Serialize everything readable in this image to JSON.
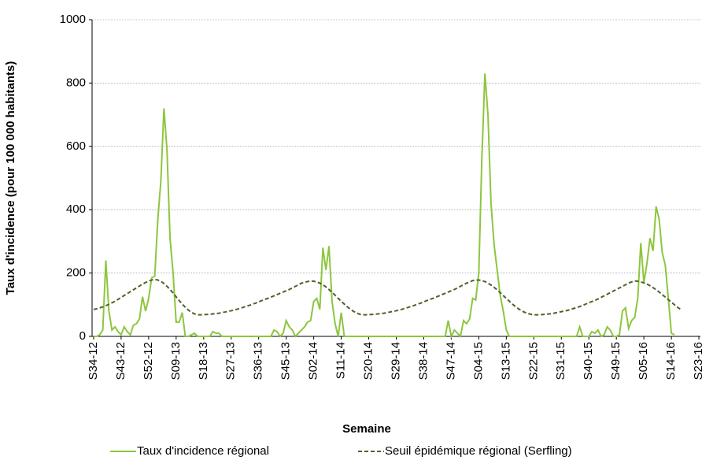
{
  "chart_data": {
    "type": "line",
    "xlabel": "Semaine",
    "ylabel": "Taux d'incidence (pour 100 000 habitants)",
    "categories": [
      "S34-12",
      null,
      null,
      null,
      null,
      null,
      null,
      null,
      null,
      "S43-12",
      null,
      null,
      null,
      null,
      null,
      null,
      null,
      null,
      "S52-12",
      null,
      null,
      null,
      null,
      null,
      null,
      null,
      null,
      "S09-13",
      null,
      null,
      null,
      null,
      null,
      null,
      null,
      null,
      "S18-13",
      null,
      null,
      null,
      null,
      null,
      null,
      null,
      null,
      "S27-13",
      null,
      null,
      null,
      null,
      null,
      null,
      null,
      null,
      "S36-13",
      null,
      null,
      null,
      null,
      null,
      null,
      null,
      null,
      "S45-13",
      null,
      null,
      null,
      null,
      null,
      null,
      null,
      null,
      "S02-14",
      null,
      null,
      null,
      null,
      null,
      null,
      null,
      null,
      "S11-14",
      null,
      null,
      null,
      null,
      null,
      null,
      null,
      null,
      "S20-14",
      null,
      null,
      null,
      null,
      null,
      null,
      null,
      null,
      "S29-14",
      null,
      null,
      null,
      null,
      null,
      null,
      null,
      null,
      "S38-14",
      null,
      null,
      null,
      null,
      null,
      null,
      null,
      null,
      "S47-14",
      null,
      null,
      null,
      null,
      null,
      null,
      null,
      null,
      "S04-15",
      null,
      null,
      null,
      null,
      null,
      null,
      null,
      null,
      "S13-15",
      null,
      null,
      null,
      null,
      null,
      null,
      null,
      null,
      "S22-15",
      null,
      null,
      null,
      null,
      null,
      null,
      null,
      null,
      "S31-15",
      null,
      null,
      null,
      null,
      null,
      null,
      null,
      null,
      "S40-15",
      null,
      null,
      null,
      null,
      null,
      null,
      null,
      null,
      "S49-15",
      null,
      null,
      null,
      null,
      null,
      null,
      null,
      null,
      "S05-16",
      null,
      null,
      null,
      null,
      null,
      null,
      null,
      null,
      "S14-16",
      null,
      null,
      null,
      null,
      null,
      null,
      null,
      null,
      "S23-16"
    ],
    "series": [
      {
        "name": "Taux d'incidence régional",
        "color": "#8dc63f",
        "dash": false,
        "values": [
          0,
          0,
          5,
          20,
          240,
          80,
          20,
          30,
          15,
          5,
          30,
          15,
          5,
          35,
          40,
          55,
          125,
          80,
          120,
          185,
          190,
          370,
          490,
          720,
          590,
          310,
          200,
          45,
          45,
          75,
          0,
          0,
          5,
          10,
          0,
          0,
          0,
          0,
          0,
          15,
          10,
          10,
          0,
          0,
          0,
          0,
          0,
          0,
          0,
          0,
          0,
          0,
          0,
          0,
          0,
          0,
          0,
          0,
          0,
          20,
          15,
          0,
          10,
          50,
          30,
          20,
          0,
          10,
          20,
          30,
          45,
          50,
          110,
          120,
          85,
          280,
          210,
          285,
          110,
          40,
          0,
          75,
          0,
          0,
          0,
          0,
          0,
          0,
          0,
          0,
          0,
          0,
          0,
          0,
          0,
          0,
          0,
          0,
          0,
          0,
          0,
          0,
          0,
          0,
          0,
          0,
          0,
          0,
          0,
          0,
          0,
          0,
          0,
          0,
          0,
          0,
          50,
          0,
          20,
          10,
          0,
          50,
          40,
          55,
          120,
          115,
          200,
          560,
          830,
          700,
          420,
          290,
          210,
          130,
          80,
          20,
          0,
          0,
          0,
          0,
          0,
          0,
          0,
          0,
          0,
          0,
          0,
          0,
          0,
          0,
          0,
          0,
          0,
          0,
          0,
          0,
          0,
          0,
          0,
          30,
          0,
          0,
          0,
          15,
          10,
          20,
          0,
          5,
          30,
          20,
          0,
          0,
          5,
          80,
          90,
          25,
          50,
          60,
          120,
          295,
          170,
          230,
          310,
          270,
          410,
          370,
          265,
          225,
          120,
          10,
          5,
          null,
          null,
          null,
          null,
          null,
          null,
          null,
          null
        ]
      },
      {
        "name": "Seuil épidémique régional (Serfling)",
        "color": "#4f6228",
        "dash": true,
        "values": [
          85,
          87,
          90,
          93,
          97,
          101,
          106,
          111,
          117,
          123,
          129,
          135,
          141,
          147,
          153,
          159,
          165,
          170,
          175,
          178,
          180,
          178,
          174,
          167,
          158,
          148,
          137,
          125,
          113,
          102,
          92,
          83,
          76,
          71,
          68,
          68,
          69,
          69,
          70,
          71,
          72,
          73,
          75,
          77,
          79,
          81,
          83,
          86,
          89,
          92,
          95,
          98,
          102,
          105,
          109,
          113,
          117,
          120,
          124,
          128,
          132,
          136,
          140,
          144,
          148,
          153,
          158,
          163,
          168,
          171,
          173,
          175,
          174,
          172,
          168,
          163,
          156,
          148,
          139,
          130,
          120,
          111,
          102,
          93,
          86,
          79,
          74,
          70,
          68,
          68,
          69,
          69,
          70,
          71,
          72,
          73,
          75,
          77,
          79,
          81,
          83,
          86,
          89,
          92,
          95,
          98,
          102,
          105,
          109,
          113,
          117,
          120,
          124,
          128,
          132,
          136,
          140,
          144,
          148,
          153,
          158,
          163,
          168,
          172,
          176,
          178,
          178,
          176,
          173,
          168,
          162,
          155,
          147,
          138,
          129,
          120,
          111,
          102,
          94,
          87,
          81,
          76,
          72,
          70,
          68,
          68,
          68,
          69,
          70,
          71,
          72,
          74,
          76,
          78,
          80,
          82,
          85,
          88,
          91,
          94,
          98,
          102,
          106,
          110,
          114,
          118,
          123,
          128,
          133,
          138,
          143,
          148,
          153,
          158,
          163,
          168,
          172,
          175,
          174,
          172,
          169,
          165,
          160,
          154,
          147,
          140,
          132,
          124,
          116,
          108,
          100,
          92,
          85,
          null,
          null,
          null,
          null,
          null,
          null
        ]
      }
    ],
    "ylim": [
      0,
      1000
    ],
    "yticks": [
      0,
      200,
      400,
      600,
      800,
      1000
    ],
    "grid": true
  }
}
